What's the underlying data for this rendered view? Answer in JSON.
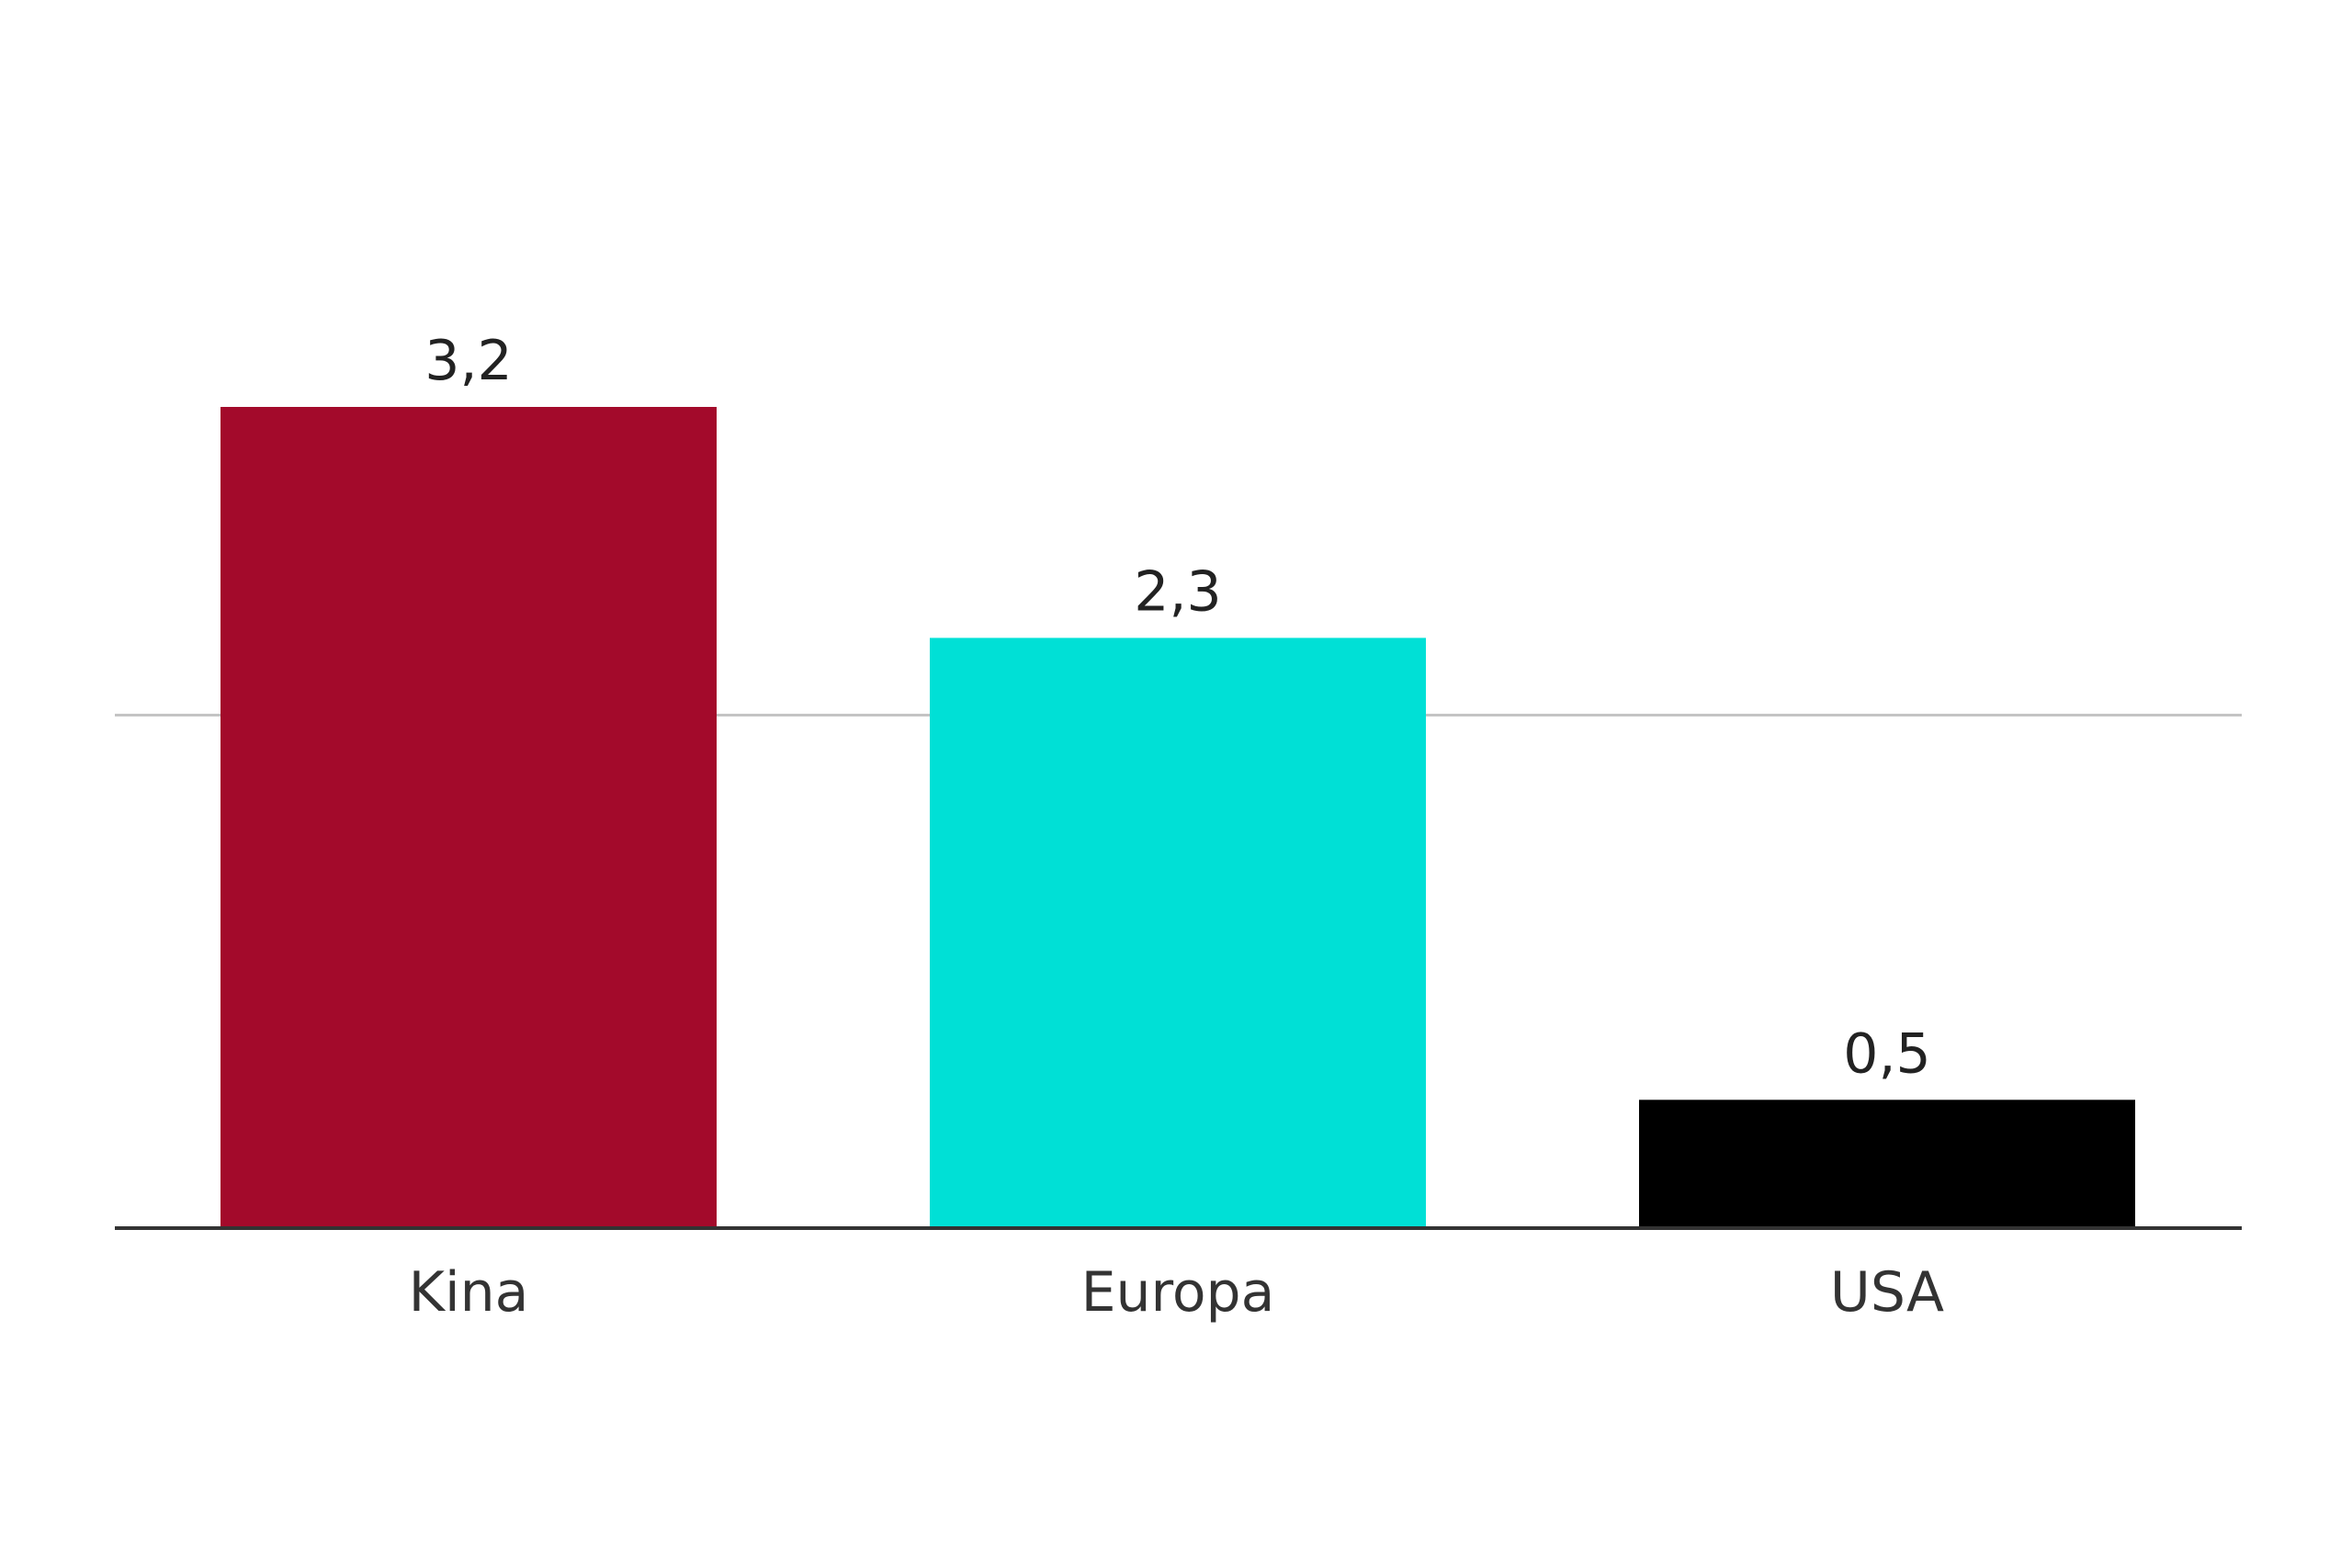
{
  "chart_data": {
    "type": "bar",
    "categories": [
      "Kina",
      "Europa",
      "USA"
    ],
    "values": [
      3.2,
      2.3,
      0.5
    ],
    "value_labels": [
      "3,2",
      "2,3",
      "0,5"
    ],
    "colors": [
      "#a30a2b",
      "#00e0d6",
      "#000000"
    ],
    "ylim": [
      0,
      3.2
    ],
    "gridlines": [
      2
    ],
    "grid": true,
    "legend": "none"
  }
}
